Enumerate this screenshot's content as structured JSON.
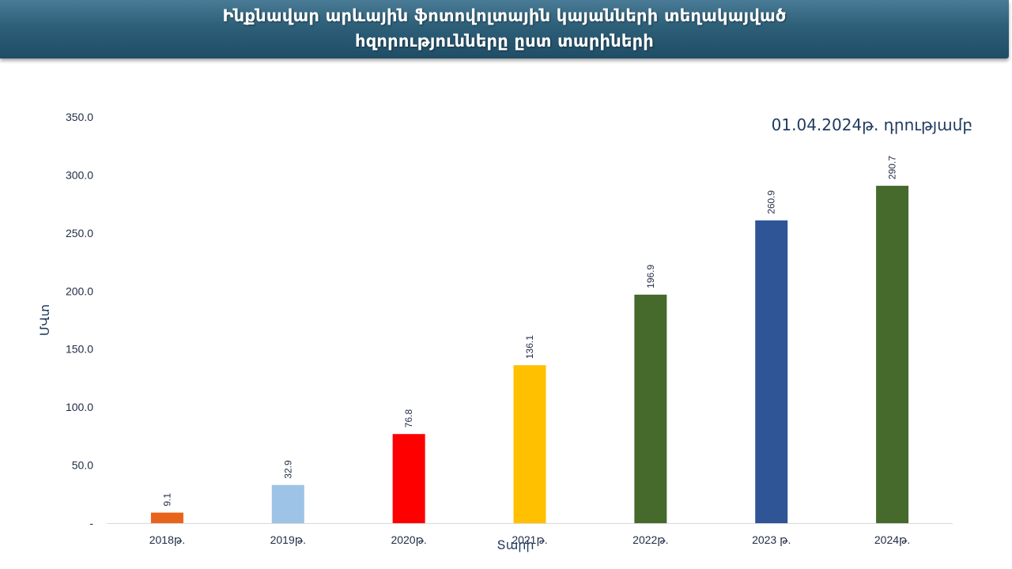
{
  "banner": {
    "title_line1": "Ինքնավար արևային ֆոտովոլտային կայանների տեղակայված",
    "title_line2": "հզորությունները ըստ տարիների"
  },
  "chart_data": {
    "type": "bar",
    "categories": [
      "2018թ.",
      "2019թ.",
      "2020թ.",
      "2021թ.",
      "2022թ.",
      "2023 թ.",
      "2024թ."
    ],
    "values": [
      9.1,
      32.9,
      76.8,
      136.1,
      196.9,
      260.9,
      290.7
    ],
    "value_labels": [
      "9.1",
      "32.9",
      "76.8",
      "136.1",
      "196.9",
      "260.9",
      "290.7"
    ],
    "bar_colors": [
      "#e8641b",
      "#9dc3e6",
      "#ff0000",
      "#ffc000",
      "#456a2b",
      "#2f5597",
      "#456a2b"
    ],
    "title": "",
    "annotation": "01.04.2024թ. դրությամբ",
    "xlabel": "Տարի",
    "ylabel": "ՄՎտ",
    "ylim": [
      0,
      350
    ],
    "yticks": [
      0,
      50,
      100,
      150,
      200,
      250,
      300,
      350
    ],
    "ytick_labels": [
      "-",
      "50.0",
      "100.0",
      "150.0",
      "200.0",
      "250.0",
      "300.0",
      "350.0"
    ],
    "grid": false,
    "legend": "none"
  }
}
